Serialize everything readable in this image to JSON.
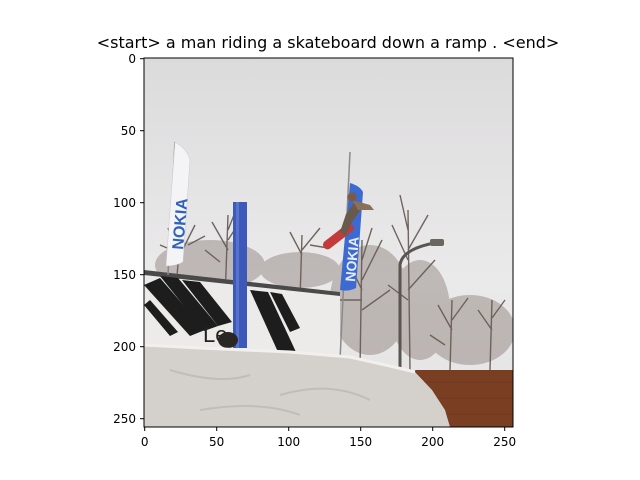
{
  "figure": {
    "title": "<start> a man riding a skateboard down a ramp . <end>",
    "axes": {
      "x_ticks": [
        "0",
        "50",
        "100",
        "150",
        "200",
        "250"
      ],
      "y_ticks": [
        "0",
        "50",
        "100",
        "150",
        "200",
        "250"
      ]
    },
    "image": {
      "visible_text": [
        "NOKIA",
        "NOKIA",
        "Le"
      ],
      "colors": {
        "sky": "#e6e6e8",
        "flag_blue": "#2f62b8",
        "snow": "#d6d3cf",
        "trees": "#5d5048",
        "fence": "#7a3f23",
        "pillar": "#3c58b8"
      }
    }
  }
}
